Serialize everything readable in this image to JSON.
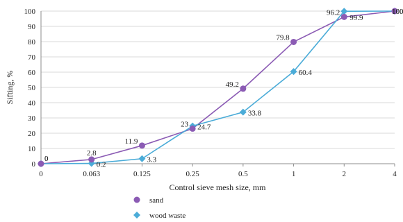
{
  "chart_data": {
    "type": "line",
    "title": "",
    "xlabel": "Control sieve mesh size, mm",
    "ylabel": "Sifting, %",
    "categories": [
      "0",
      "0.063",
      "0.125",
      "0.25",
      "0.5",
      "1",
      "2",
      "4"
    ],
    "y_ticks": [
      "0",
      "10",
      "20",
      "30",
      "40",
      "50",
      "60",
      "70",
      "80",
      "90",
      "100"
    ],
    "ylim": [
      0,
      100
    ],
    "grid": "horizontal",
    "legend_position": "bottom",
    "series": [
      {
        "name": "sand",
        "marker": "circle",
        "color": "#8B5BB4",
        "values": [
          0,
          2.8,
          11.9,
          23,
          49.2,
          79.8,
          96.2,
          100
        ],
        "labels": [
          "0",
          "2.8",
          "11.9",
          "23",
          "49.2",
          "79.8",
          "96.2",
          "100"
        ]
      },
      {
        "name": "wood waste",
        "marker": "diamond",
        "color": "#4BACD8",
        "values": [
          0,
          0.2,
          3.3,
          24.7,
          33.8,
          60.4,
          99.9,
          100
        ],
        "labels": [
          "0",
          "0.2",
          "3.3",
          "24.7",
          "33.8",
          "60.4",
          "99.9",
          "100"
        ]
      }
    ]
  }
}
